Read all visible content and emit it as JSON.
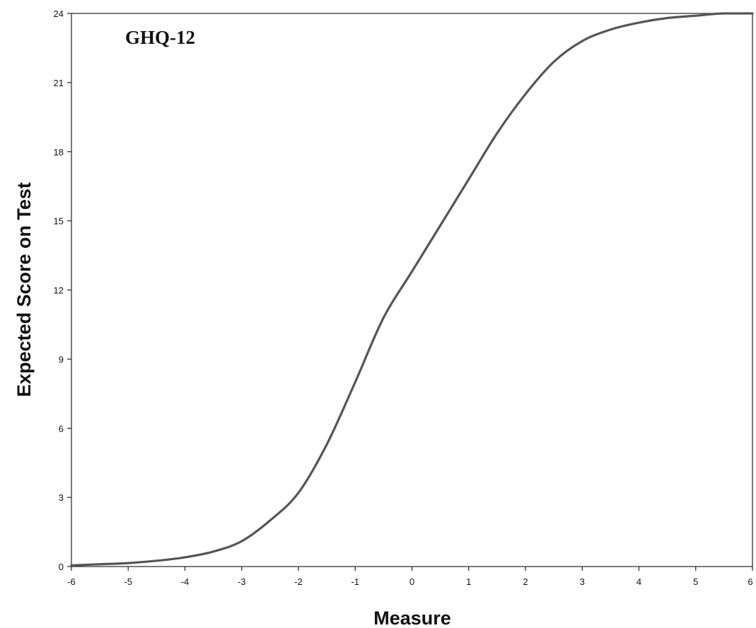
{
  "chart_data": {
    "type": "line",
    "title": "",
    "annotation": "GHQ-12",
    "xlabel": "Measure",
    "ylabel": "Expected Score on Test",
    "xlim": [
      -6,
      6
    ],
    "ylim": [
      0,
      24
    ],
    "xticks": [
      -6,
      -5,
      -4,
      -3,
      -2,
      -1,
      0,
      1,
      2,
      3,
      4,
      5,
      6
    ],
    "yticks": [
      0,
      3,
      6,
      9,
      12,
      15,
      18,
      21,
      24
    ],
    "grid": false,
    "legend": "none",
    "line_color": "#555555",
    "series": [
      {
        "x": [
          -6,
          -5.5,
          -5,
          -4.5,
          -4,
          -3.5,
          -3,
          -2.5,
          -2,
          -1.5,
          -1,
          -0.5,
          0,
          0.5,
          1,
          1.5,
          2,
          2.5,
          3,
          3.5,
          4,
          4.5,
          5,
          5.5,
          6
        ],
        "values": [
          0.05,
          0.1,
          0.15,
          0.25,
          0.4,
          0.65,
          1.1,
          2.0,
          3.2,
          5.3,
          8.0,
          10.8,
          12.8,
          14.8,
          16.8,
          18.8,
          20.5,
          21.9,
          22.8,
          23.3,
          23.6,
          23.8,
          23.9,
          24.0,
          24.0
        ]
      }
    ]
  }
}
